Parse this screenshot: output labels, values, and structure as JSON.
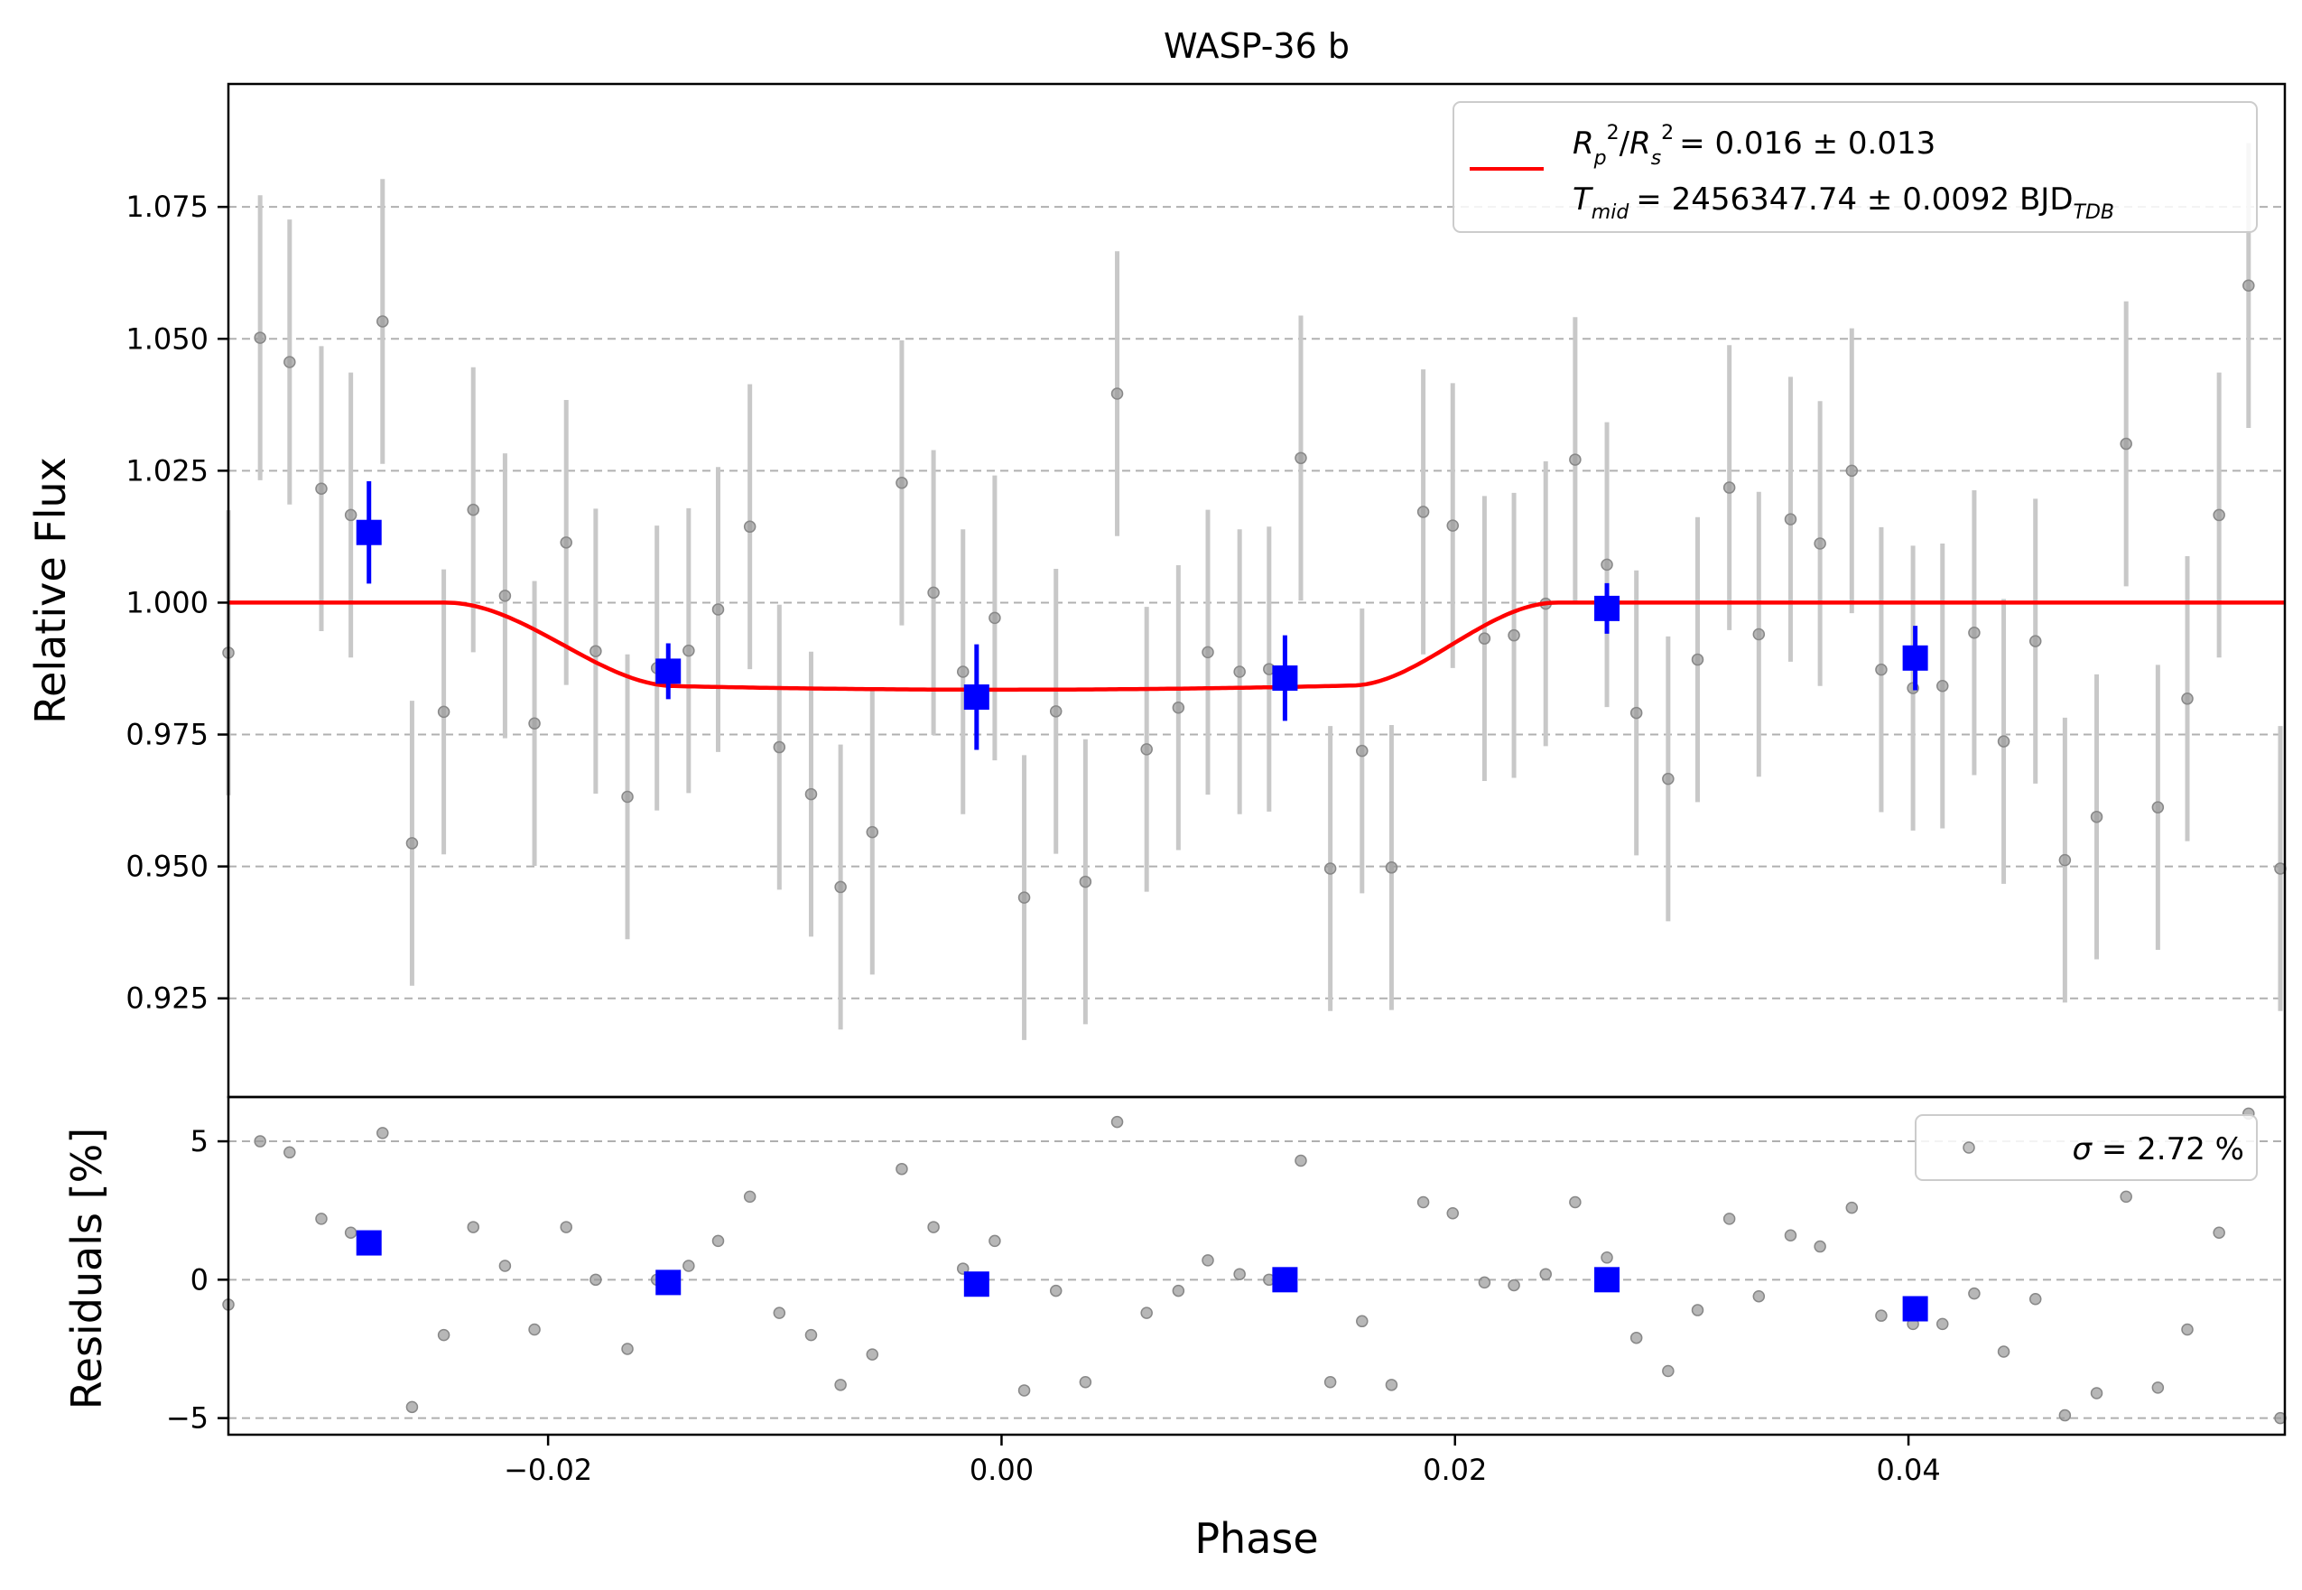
{
  "chart_data": [
    {
      "type": "scatter",
      "title": "WASP-36 b",
      "xlabel": "",
      "ylabel": "Relative Flux",
      "xlim": [
        -0.0341,
        0.0566
      ],
      "ylim": [
        0.9063,
        1.0983
      ],
      "yticks": [
        0.925,
        0.95,
        0.975,
        1.0,
        1.025,
        1.05,
        1.075
      ],
      "ytick_labels": [
        "0.925",
        "0.950",
        "0.975",
        "1.000",
        "1.025",
        "1.050",
        "1.075"
      ],
      "grid": "horizontal dashed",
      "legend": {
        "placement": "top-right",
        "label_line1": "= 0.016 ± 0.013",
        "label_line2": "= 2456347.74 ± 0.0092 BJD"
      },
      "raw_points": {
        "color": "#999999",
        "errorbar": 0.027,
        "x": [
          -0.0341,
          -0.0327,
          -0.0314,
          -0.03,
          -0.0287,
          -0.0273,
          -0.026,
          -0.0246,
          -0.0233,
          -0.0219,
          -0.0206,
          -0.0192,
          -0.0179,
          -0.0165,
          -0.0152,
          -0.0138,
          -0.0125,
          -0.0111,
          -0.0098,
          -0.0084,
          -0.0071,
          -0.0057,
          -0.0044,
          -0.003,
          -0.0017,
          -0.0003,
          0.001,
          0.0024,
          0.0037,
          0.0051,
          0.0064,
          0.0078,
          0.0091,
          0.0105,
          0.0118,
          0.0132,
          0.0145,
          0.0159,
          0.0172,
          0.0186,
          0.0199,
          0.0213,
          0.0226,
          0.024,
          0.0253,
          0.0267,
          0.028,
          0.0294,
          0.0307,
          0.0321,
          0.0334,
          0.0348,
          0.0361,
          0.0375,
          0.0388,
          0.0402,
          0.0415,
          0.0429,
          0.0442,
          0.0456,
          0.0469,
          0.0483,
          0.0496,
          0.051,
          0.0523,
          0.0537,
          0.055,
          0.0564
        ],
        "y": [
          0.9905,
          1.0502,
          1.0456,
          1.0216,
          1.0166,
          1.0533,
          0.9544,
          0.9793,
          1.0176,
          1.0013,
          0.9771,
          1.0114,
          0.9908,
          0.9632,
          0.9876,
          0.9909,
          0.9987,
          1.0144,
          0.9726,
          0.9637,
          0.9461,
          0.9565,
          1.0227,
          1.0019,
          0.9869,
          0.9971,
          0.9441,
          0.9794,
          0.9471,
          1.0396,
          0.9722,
          0.9801,
          0.9906,
          0.9869,
          0.9874,
          1.0274,
          0.9496,
          0.9719,
          0.9498,
          1.0172,
          1.0146,
          0.9932,
          0.9938,
          0.9998,
          1.0271,
          1.0072,
          0.9791,
          0.9666,
          0.9892,
          1.0218,
          0.994,
          1.0158,
          1.0112,
          1.025,
          0.9873,
          0.9838,
          0.9842,
          0.9943,
          0.9737,
          0.9927,
          0.9512,
          0.9594,
          1.0301,
          0.9612,
          0.9818,
          1.0166,
          1.0601,
          0.9496
        ]
      },
      "binned_points": {
        "color": "#0000ff",
        "x": [
          -0.0279,
          -0.0147,
          -0.0011,
          0.0125,
          0.0267,
          0.0403
        ],
        "y": [
          1.0133,
          0.987,
          0.9821,
          0.9857,
          0.9989,
          0.9895
        ],
        "err": [
          0.0097,
          0.0053,
          0.01,
          0.0081,
          0.0048,
          0.0061
        ]
      },
      "model": {
        "color": "#ff0000",
        "t1": -0.0245,
        "t2": -0.0145,
        "t3": 0.0155,
        "t4": 0.0245,
        "baseline": 1.0,
        "depth": 0.0165
      }
    },
    {
      "type": "scatter",
      "xlabel": "Phase",
      "ylabel": "Residuals [%]",
      "xlim": [
        -0.0341,
        0.0566
      ],
      "ylim": [
        -5.6,
        6.6
      ],
      "xticks": [
        -0.02,
        0.0,
        0.02,
        0.04
      ],
      "xtick_labels": [
        "−0.02",
        "0.00",
        "0.02",
        "0.04"
      ],
      "yticks": [
        -5,
        0,
        5
      ],
      "ytick_labels": [
        "−5",
        "0",
        "5"
      ],
      "grid": "horizontal dashed",
      "legend": {
        "placement": "top-right",
        "label": "= 2.72 %",
        "sigma": "σ"
      },
      "raw_points": {
        "color": "#999999",
        "x": [
          -0.0341,
          -0.0327,
          -0.0314,
          -0.03,
          -0.0287,
          -0.0273,
          -0.026,
          -0.0246,
          -0.0233,
          -0.0219,
          -0.0206,
          -0.0192,
          -0.0179,
          -0.0165,
          -0.0152,
          -0.0138,
          -0.0125,
          -0.0111,
          -0.0098,
          -0.0084,
          -0.0071,
          -0.0057,
          -0.0044,
          -0.003,
          -0.0017,
          -0.0003,
          0.001,
          0.0024,
          0.0037,
          0.0051,
          0.0064,
          0.0078,
          0.0091,
          0.0105,
          0.0118,
          0.0132,
          0.0145,
          0.0159,
          0.0172,
          0.0186,
          0.0199,
          0.0213,
          0.0226,
          0.024,
          0.0253,
          0.0267,
          0.028,
          0.0294,
          0.0307,
          0.0321,
          0.0334,
          0.0348,
          0.0361,
          0.0375,
          0.0388,
          0.0402,
          0.0415,
          0.0429,
          0.0442,
          0.0456,
          0.0469,
          0.0483,
          0.0496,
          0.051,
          0.0523,
          0.0537,
          0.055,
          0.0564
        ],
        "y": [
          -0.9,
          5.0,
          4.6,
          2.2,
          1.7,
          5.3,
          -4.6,
          -2.0,
          1.9,
          0.5,
          -1.8,
          1.9,
          0.0,
          -2.5,
          0.0,
          0.5,
          1.4,
          3.0,
          -1.2,
          -2.0,
          -3.8,
          -2.7,
          4.0,
          1.9,
          0.4,
          1.4,
          -4.0,
          -0.4,
          -3.7,
          5.7,
          -1.2,
          -0.4,
          0.7,
          0.2,
          0.0,
          4.3,
          -3.7,
          -1.5,
          -3.8,
          2.8,
          2.4,
          -0.1,
          -0.2,
          0.2,
          2.8,
          0.8,
          -2.1,
          -3.3,
          -1.1,
          2.2,
          -0.6,
          1.6,
          1.2,
          2.6,
          -1.3,
          -1.6,
          -1.6,
          -0.5,
          -2.6,
          -0.7,
          -4.9,
          -4.1,
          3.0,
          -3.9,
          -1.8,
          1.7,
          6.0,
          -5.0
        ]
      },
      "binned_points": {
        "color": "#0000ff",
        "x": [
          -0.0279,
          -0.0147,
          -0.0011,
          0.0125,
          0.0267,
          0.0403
        ],
        "y": [
          1.33,
          -0.1,
          -0.16,
          0.0,
          0.0,
          -1.05
        ]
      }
    }
  ]
}
